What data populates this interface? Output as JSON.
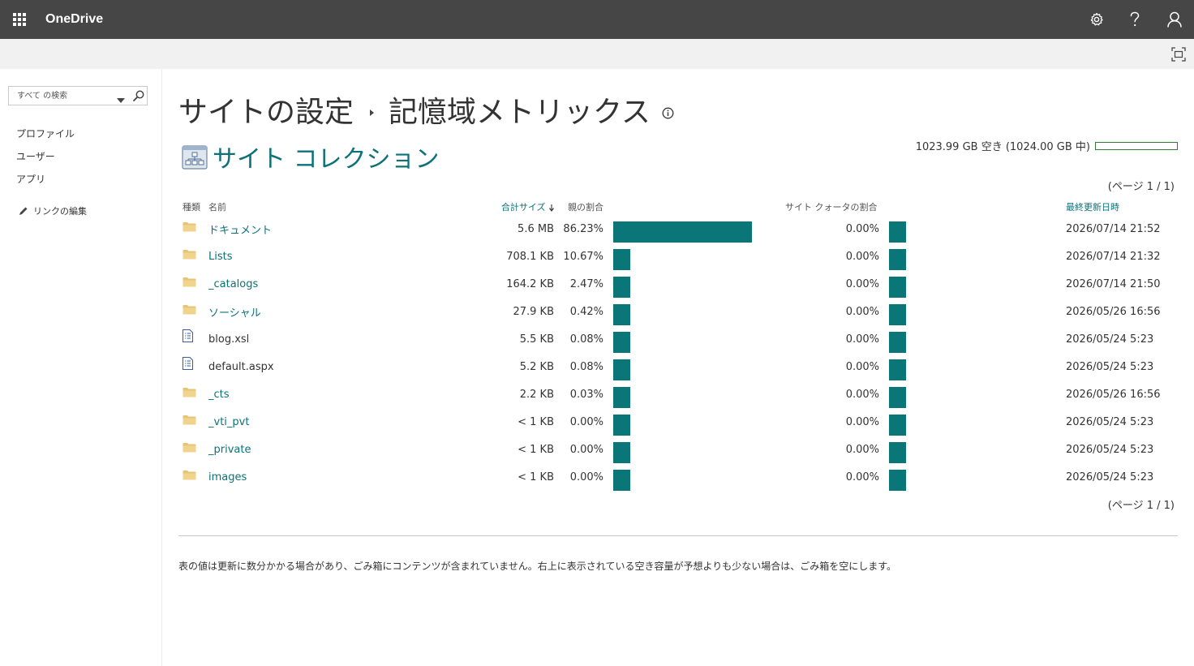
{
  "suitebar": {
    "app_name": "OneDrive",
    "icons": [
      "app-launcher-icon",
      "settings-gear-icon",
      "help-question-icon",
      "user-profile-icon"
    ]
  },
  "leftnav": {
    "search_placeholder": "すべて の検索",
    "items": [
      {
        "label": "プロファイル"
      },
      {
        "label": "ユーザー"
      },
      {
        "label": "アプリ"
      }
    ],
    "edit_links_label": "リンクの編集"
  },
  "page": {
    "breadcrumb_root": "サイトの設定",
    "title": "記憶域メトリックス",
    "section_title": "サイト コレクション",
    "storage_summary": "1023.99 GB 空き (1024.00 GB 中)",
    "storage_used_fraction": 1e-05,
    "pager_top": "(ページ 1 / 1)",
    "pager_bottom": "(ページ 1 / 1)",
    "footnote": "表の値は更新に数分かかる場合があり、ごみ箱にコンテンツが含まれていません。右上に表示されている空き容量が予想よりも少ない場合は、ごみ箱を空にします。"
  },
  "table": {
    "headers": {
      "type": "種類",
      "name": "名前",
      "total_size": "合計サイズ",
      "parent_pct": "親の割合",
      "quota_pct": "サイト クォータの割合",
      "modified": "最終更新日時"
    },
    "rows": [
      {
        "type": "folder",
        "name": "ドキュメント",
        "size": "5.6 MB",
        "parent_pct": "86.23%",
        "parent_value": 86.23,
        "quota_pct": "0.00%",
        "quota_value": 0.0,
        "modified": "2026/07/14 21:52",
        "link": true
      },
      {
        "type": "folder",
        "name": "Lists",
        "size": "708.1 KB",
        "parent_pct": "10.67%",
        "parent_value": 10.67,
        "quota_pct": "0.00%",
        "quota_value": 0.0,
        "modified": "2026/07/14 21:32",
        "link": true
      },
      {
        "type": "folder",
        "name": "_catalogs",
        "size": "164.2 KB",
        "parent_pct": "2.47%",
        "parent_value": 2.47,
        "quota_pct": "0.00%",
        "quota_value": 0.0,
        "modified": "2026/07/14 21:50",
        "link": true
      },
      {
        "type": "folder",
        "name": "ソーシャル",
        "size": "27.9 KB",
        "parent_pct": "0.42%",
        "parent_value": 0.42,
        "quota_pct": "0.00%",
        "quota_value": 0.0,
        "modified": "2026/05/26 16:56",
        "link": true
      },
      {
        "type": "file",
        "name": "blog.xsl",
        "size": "5.5 KB",
        "parent_pct": "0.08%",
        "parent_value": 0.08,
        "quota_pct": "0.00%",
        "quota_value": 0.0,
        "modified": "2026/05/24 5:23",
        "link": false
      },
      {
        "type": "file",
        "name": "default.aspx",
        "size": "5.2 KB",
        "parent_pct": "0.08%",
        "parent_value": 0.08,
        "quota_pct": "0.00%",
        "quota_value": 0.0,
        "modified": "2026/05/24 5:23",
        "link": false
      },
      {
        "type": "folder",
        "name": "_cts",
        "size": "2.2 KB",
        "parent_pct": "0.03%",
        "parent_value": 0.03,
        "quota_pct": "0.00%",
        "quota_value": 0.0,
        "modified": "2026/05/26 16:56",
        "link": true
      },
      {
        "type": "folder",
        "name": "_vti_pvt",
        "size": "< 1 KB",
        "parent_pct": "0.00%",
        "parent_value": 0.0,
        "quota_pct": "0.00%",
        "quota_value": 0.0,
        "modified": "2026/05/24 5:23",
        "link": true
      },
      {
        "type": "folder",
        "name": "_private",
        "size": "< 1 KB",
        "parent_pct": "0.00%",
        "parent_value": 0.0,
        "quota_pct": "0.00%",
        "quota_value": 0.0,
        "modified": "2026/05/24 5:23",
        "link": true
      },
      {
        "type": "folder",
        "name": "images",
        "size": "< 1 KB",
        "parent_pct": "0.00%",
        "parent_value": 0.0,
        "quota_pct": "0.00%",
        "quota_value": 0.0,
        "modified": "2026/05/24 5:23",
        "link": true
      }
    ]
  },
  "colors": {
    "suitebar": "#464646",
    "accent": "#0c7278",
    "bar_fill": "#0b7678",
    "storage_bar": "#2e7d32",
    "folder": "#e8c477"
  }
}
